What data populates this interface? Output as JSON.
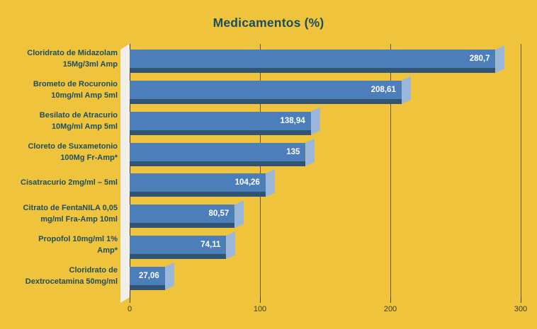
{
  "chart": {
    "title": "Medicamentos (%)"
  },
  "chart_data": {
    "type": "bar",
    "orientation": "horizontal",
    "title": "Medicamentos (%)",
    "categories": [
      [
        "Cloridrato de Midazolam",
        "15Mg/3ml Amp"
      ],
      [
        "Brometo de Rocuronio",
        "10mg/ml Amp 5ml"
      ],
      [
        "Besilato de Atracurio",
        "10Mg/ml Amp 5ml"
      ],
      [
        "Cloreto de Suxametonio",
        "100Mg Fr-Amp*"
      ],
      [
        "Cisatracurio 2mg/ml – 5ml"
      ],
      [
        "Citrato de FentaNILA 0,05",
        "mg/ml Fra-Amp 10ml"
      ],
      [
        "Propofol 10mg/ml 1%",
        "Amp*"
      ],
      [
        "Cloridrato de",
        "Dextrocetamina 50mg/ml"
      ]
    ],
    "values": [
      280.7,
      208.61,
      138.94,
      135,
      104.26,
      80.57,
      74.11,
      27.06
    ],
    "value_labels": [
      "280,7",
      "208,61",
      "138,94",
      "135",
      "104,26",
      "80,57",
      "74,11",
      "27,06"
    ],
    "x_ticks": [
      0,
      100,
      200,
      300
    ],
    "x_tick_labels": [
      "0",
      "100",
      "200",
      "300"
    ],
    "xlim": [
      0,
      300
    ],
    "grid": true,
    "legend": false,
    "colors": {
      "background": "#f0c33c",
      "bar_front": "#4c7fba",
      "bar_side": "#9ab7d9",
      "bar_bottom": "#325473",
      "title_text": "#1b4e5d",
      "label_text": "#1c4f5e",
      "value_text": "#ffffff",
      "gridline": "#5e5743",
      "axis_wall": "#f1efe7"
    }
  }
}
